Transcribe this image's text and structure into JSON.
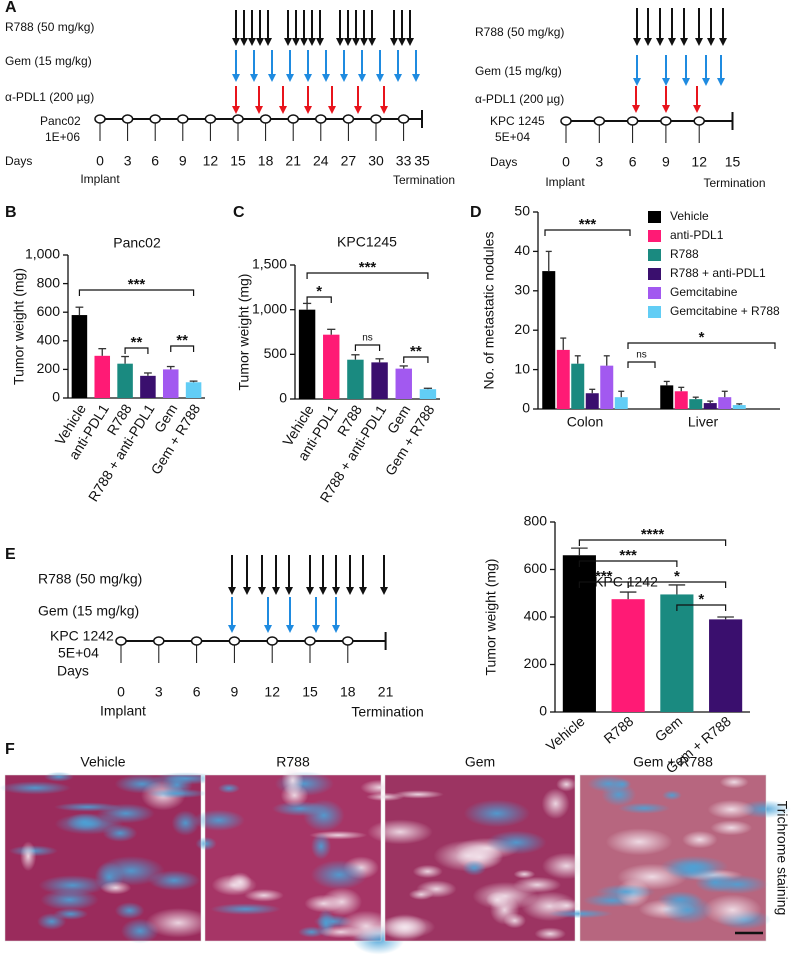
{
  "panel_labels": [
    "A",
    "B",
    "C",
    "D",
    "E",
    "F"
  ],
  "timelines": [
    {
      "drugs": [
        "R788 (50 mg/kg)",
        "Gem (15 mg/kg)",
        "α-PDL1 (200 µg)"
      ],
      "model": "Panc02",
      "cells": "1E+06",
      "days_label": "Days",
      "days": [
        0,
        3,
        6,
        9,
        12,
        15,
        18,
        21,
        24,
        27,
        30,
        33,
        35
      ],
      "start": "Implant",
      "end": "Termination"
    },
    {
      "drugs": [
        "R788 (50 mg/kg)",
        "Gem (15 mg/kg)",
        "α-PDL1 (200 µg)"
      ],
      "model": "KPC 1245",
      "cells": "5E+04",
      "days_label": "Days",
      "days": [
        0,
        3,
        6,
        9,
        12,
        15
      ],
      "start": "Implant",
      "end": "Termination"
    },
    {
      "drugs": [
        "R788 (50 mg/kg)",
        "Gem (15 mg/kg)"
      ],
      "model": "KPC 1242",
      "cells": "5E+04",
      "days_label": "Days",
      "days": [
        0,
        3,
        6,
        9,
        12,
        15,
        18,
        21
      ],
      "start": "Implant",
      "end": "Termination"
    }
  ],
  "chart_data": [
    {
      "type": "bar",
      "title": "Panc02",
      "y_label": "Tumor weight (mg)",
      "categories": [
        "Vehicle",
        "anti-PDL1",
        "R788",
        "R788 + anti-PDL1",
        "Gem",
        "Gem + R788"
      ],
      "values": [
        580,
        295,
        240,
        155,
        200,
        110
      ],
      "errors": [
        55,
        50,
        50,
        20,
        20,
        8
      ],
      "colors": [
        "#000000",
        "#ff1a75",
        "#1a8a80",
        "#3a0f6e",
        "#a259f0",
        "#62cdf5"
      ],
      "ylim": [
        0,
        1000
      ],
      "yticks": [
        0,
        200,
        400,
        600,
        800,
        {
          "value": 1000,
          "label": "1,000"
        }
      ],
      "annotations": [
        "***",
        "**",
        "**"
      ]
    },
    {
      "type": "bar",
      "title": "KPC1245",
      "y_label": "Tumor weight (mg)",
      "categories": [
        "Vehicle",
        "anti-PDL1",
        "R788",
        "R788 + anti-PDL1",
        "Gem",
        "Gem + R788"
      ],
      "values": [
        1000,
        720,
        440,
        410,
        340,
        110
      ],
      "errors": [
        70,
        60,
        55,
        40,
        30,
        10
      ],
      "colors": [
        "#000000",
        "#ff1a75",
        "#1a8a80",
        "#3a0f6e",
        "#a259f0",
        "#62cdf5"
      ],
      "ylim": [
        0,
        1500
      ],
      "yticks": [
        0,
        500,
        {
          "value": 1000,
          "label": "1,000"
        },
        {
          "value": 1500,
          "label": "1,500"
        }
      ],
      "annotations": [
        "*",
        "***",
        "ns",
        "**"
      ]
    },
    {
      "type": "grouped_bar",
      "y_label": "No. of metastatic nodules",
      "categories": [
        "Colon",
        "Liver"
      ],
      "series": [
        {
          "name": "Vehicle",
          "color": "#000000",
          "values": [
            35,
            6
          ],
          "errors": [
            5,
            1
          ]
        },
        {
          "name": "anti-PDL1",
          "color": "#ff1a75",
          "values": [
            15,
            4.5
          ],
          "errors": [
            3,
            1
          ]
        },
        {
          "name": "R788",
          "color": "#1a8a80",
          "values": [
            11.5,
            2.5
          ],
          "errors": [
            2,
            0.5
          ]
        },
        {
          "name": "R788 + anti-PDL1",
          "color": "#3a0f6e",
          "values": [
            4,
            1.5
          ],
          "errors": [
            1,
            0.5
          ]
        },
        {
          "name": "Gemcitabine",
          "color": "#a259f0",
          "values": [
            11,
            3
          ],
          "errors": [
            2.5,
            1.5
          ]
        },
        {
          "name": "Gemcitabine + R788",
          "color": "#62cdf5",
          "values": [
            3,
            1
          ],
          "errors": [
            1.5,
            0.3
          ]
        }
      ],
      "ylim": [
        0,
        50
      ],
      "yticks": [
        0,
        10,
        20,
        30,
        40,
        50
      ],
      "annotations": [
        "***",
        "ns",
        "*"
      ]
    },
    {
      "type": "bar",
      "title": "KPC 1242",
      "y_label": "Tumor weight (mg)",
      "categories": [
        "Vehicle",
        "R788",
        "Gem",
        "Gem + R788"
      ],
      "values": [
        660,
        475,
        495,
        390
      ],
      "errors": [
        30,
        30,
        40,
        10
      ],
      "colors": [
        "#000000",
        "#ff1a75",
        "#1a8a80",
        "#3a0f6e"
      ],
      "ylim": [
        0,
        800
      ],
      "yticks": [
        0,
        200,
        400,
        600,
        800
      ],
      "annotations": [
        "****",
        "***",
        "***",
        "*",
        "*"
      ]
    }
  ],
  "histology": {
    "columns": [
      "Vehicle",
      "R788",
      "Gem",
      "Gem + R788"
    ],
    "stain": "Trichrome staining"
  }
}
